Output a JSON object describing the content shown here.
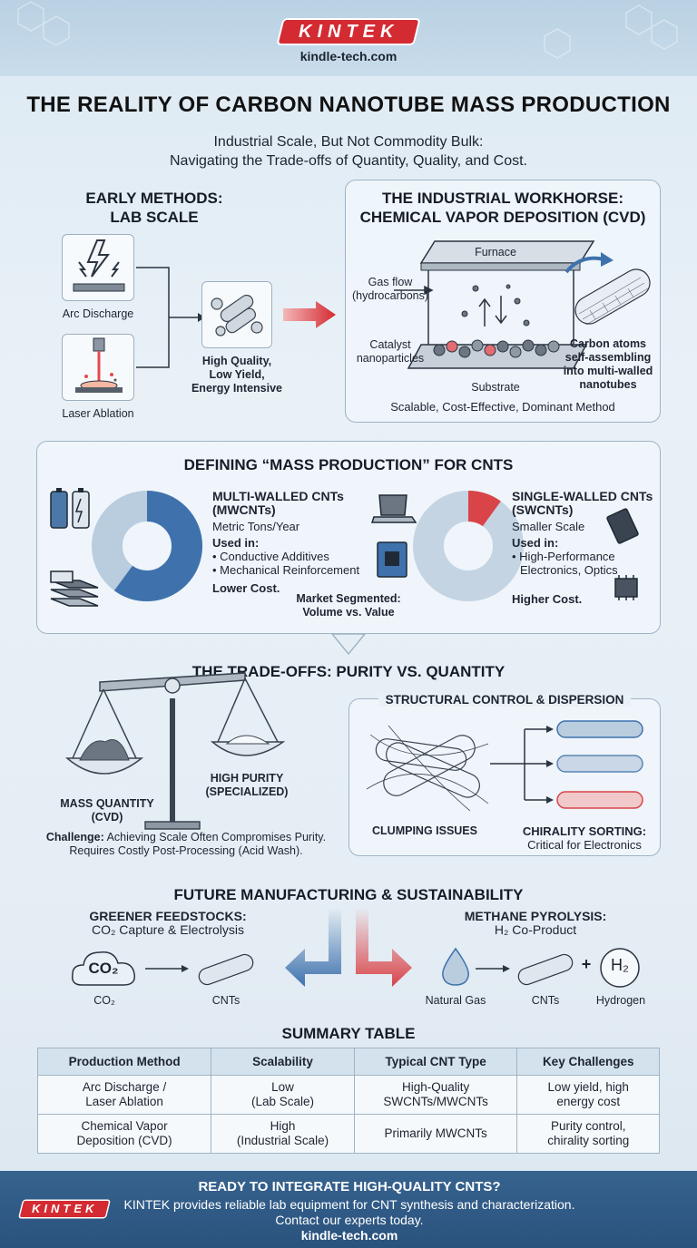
{
  "header": {
    "logo": "KINTEK",
    "site": "kindle-tech.com"
  },
  "title": "THE REALITY OF CARBON NANOTUBE MASS PRODUCTION",
  "subtitle": {
    "line1": "Industrial Scale, But Not Commodity Bulk:",
    "line2": "Navigating the Trade-offs of Quantity, Quality, and Cost."
  },
  "early": {
    "heading1": "EARLY METHODS:",
    "heading2": "LAB SCALE",
    "arc": "Arc Discharge",
    "laser": "Laser Ablation",
    "result1": "High Quality,",
    "result2": "Low Yield,",
    "result3": "Energy Intensive"
  },
  "cvd": {
    "heading1": "THE INDUSTRIAL WORKHORSE:",
    "heading2": "CHEMICAL VAPOR DEPOSITION (CVD)",
    "furnace": "Furnace",
    "gas1": "Gas flow",
    "gas2": "(hydrocarbons)",
    "catalyst1": "Catalyst",
    "catalyst2": "nanoparticles",
    "substrate": "Substrate",
    "carbon1": "Carbon atoms",
    "carbon2": "self-assembling",
    "carbon3": "into multi-walled",
    "carbon4": "nanotubes",
    "footer": "Scalable, Cost-Effective, Dominant Method"
  },
  "mass": {
    "heading": "DEFINING “MASS PRODUCTION” FOR CNTS",
    "mw": {
      "title1": "MULTI-WALLED CNTs",
      "title2": "(MWCNTs)",
      "scale": "Metric Tons/Year",
      "used": "Used in:",
      "use1": "• Conductive Additives",
      "use2": "• Mechanical Reinforcement",
      "cost": "Lower Cost.",
      "share": 0.6
    },
    "sw": {
      "title1": "SINGLE-WALLED CNTs",
      "title2": "(SWCNTs)",
      "scale": "Smaller Scale",
      "used": "Used in:",
      "use1": "• High-Performance",
      "use2": "Electronics, Optics",
      "cost": "Higher Cost.",
      "share": 0.1
    },
    "market1": "Market Segmented:",
    "market2": "Volume vs. Value"
  },
  "tradeoffs": {
    "heading": "THE TRADE-OFFS: PURITY VS. QUANTITY",
    "mass1": "MASS QUANTITY",
    "mass2": "(CVD)",
    "pure1": "HIGH PURITY",
    "pure2": "(SPECIALIZED)",
    "challenge_label": "Challenge:",
    "challenge1": "Achieving Scale Often Compromises Purity.",
    "challenge2": "Requires Costly Post-Processing (Acid Wash).",
    "struct_heading": "STRUCTURAL CONTROL & DISPERSION",
    "clump": "CLUMPING ISSUES",
    "chirality": "CHIRALITY SORTING:",
    "chirality_sub": "Critical for Electronics"
  },
  "future": {
    "heading": "FUTURE MANUFACTURING & SUSTAINABILITY",
    "green1": "GREENER FEEDSTOCKS:",
    "green2": "CO₂ Capture & Electrolysis",
    "co2_icon": "CO₂",
    "co2": "CO₂",
    "cnts_left": "CNTs",
    "meth1": "METHANE PYROLYSIS:",
    "meth2": "H₂ Co-Product",
    "gas": "Natural Gas",
    "cnts_right": "CNTs",
    "plus": "+",
    "h2_icon": "H₂",
    "hydrogen": "Hydrogen"
  },
  "summary": {
    "heading": "SUMMARY TABLE",
    "columns": [
      "Production Method",
      "Scalability",
      "Typical CNT Type",
      "Key Challenges"
    ],
    "rows": [
      [
        "Arc Discharge /",
        "Laser Ablation",
        "Low",
        "(Lab Scale)",
        "High-Quality",
        "SWCNTs/MWCNTs",
        "Low yield, high",
        "energy cost"
      ],
      [
        "Chemical Vapor",
        "Deposition (CVD)",
        "High",
        "(Industrial Scale)",
        "Primarily MWCNTs",
        "",
        "Purity control,",
        "chirality sorting"
      ]
    ]
  },
  "footer": {
    "logo": "KINTEK",
    "cta": "READY TO INTEGRATE HIGH-QUALITY CNTS?",
    "line1": "KINTEK provides reliable lab equipment for CNT synthesis and characterization.",
    "line2": "Contact our experts today.",
    "site": "kindle-tech.com"
  },
  "colors": {
    "accent_red": "#d42a32",
    "blue": "#3f72ad",
    "light_blue": "#b9cddf",
    "navy": "#2a527d"
  }
}
